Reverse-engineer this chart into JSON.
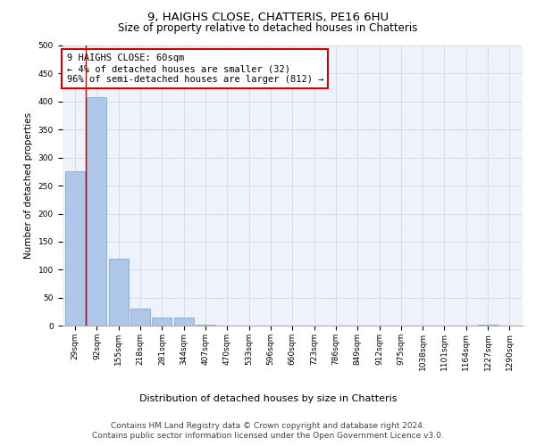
{
  "title": "9, HAIGHS CLOSE, CHATTERIS, PE16 6HU",
  "subtitle": "Size of property relative to detached houses in Chatteris",
  "xlabel": "Distribution of detached houses by size in Chatteris",
  "ylabel": "Number of detached properties",
  "categories": [
    "29sqm",
    "92sqm",
    "155sqm",
    "218sqm",
    "281sqm",
    "344sqm",
    "407sqm",
    "470sqm",
    "533sqm",
    "596sqm",
    "660sqm",
    "723sqm",
    "786sqm",
    "849sqm",
    "912sqm",
    "975sqm",
    "1038sqm",
    "1101sqm",
    "1164sqm",
    "1227sqm",
    "1290sqm"
  ],
  "values": [
    275,
    407,
    120,
    30,
    15,
    14,
    2,
    0,
    0,
    0,
    0,
    0,
    0,
    0,
    0,
    0,
    0,
    0,
    0,
    2,
    0
  ],
  "bar_color": "#aec6e8",
  "bar_edge_color": "#7badd4",
  "annotation_line1": "9 HAIGHS CLOSE: 60sqm",
  "annotation_line2": "← 4% of detached houses are smaller (32)",
  "annotation_line3": "96% of semi-detached houses are larger (812) →",
  "annotation_box_color": "#ffffff",
  "annotation_box_edge_color": "#cc0000",
  "ylim": [
    0,
    500
  ],
  "yticks": [
    0,
    50,
    100,
    150,
    200,
    250,
    300,
    350,
    400,
    450,
    500
  ],
  "grid_color": "#d0d8e8",
  "background_color": "#eef2fa",
  "footer_line1": "Contains HM Land Registry data © Crown copyright and database right 2024.",
  "footer_line2": "Contains public sector information licensed under the Open Government Licence v3.0.",
  "title_fontsize": 9.5,
  "subtitle_fontsize": 8.5,
  "xlabel_fontsize": 8,
  "ylabel_fontsize": 7.5,
  "tick_fontsize": 6.5,
  "annotation_fontsize": 7.5,
  "footer_fontsize": 6.5
}
